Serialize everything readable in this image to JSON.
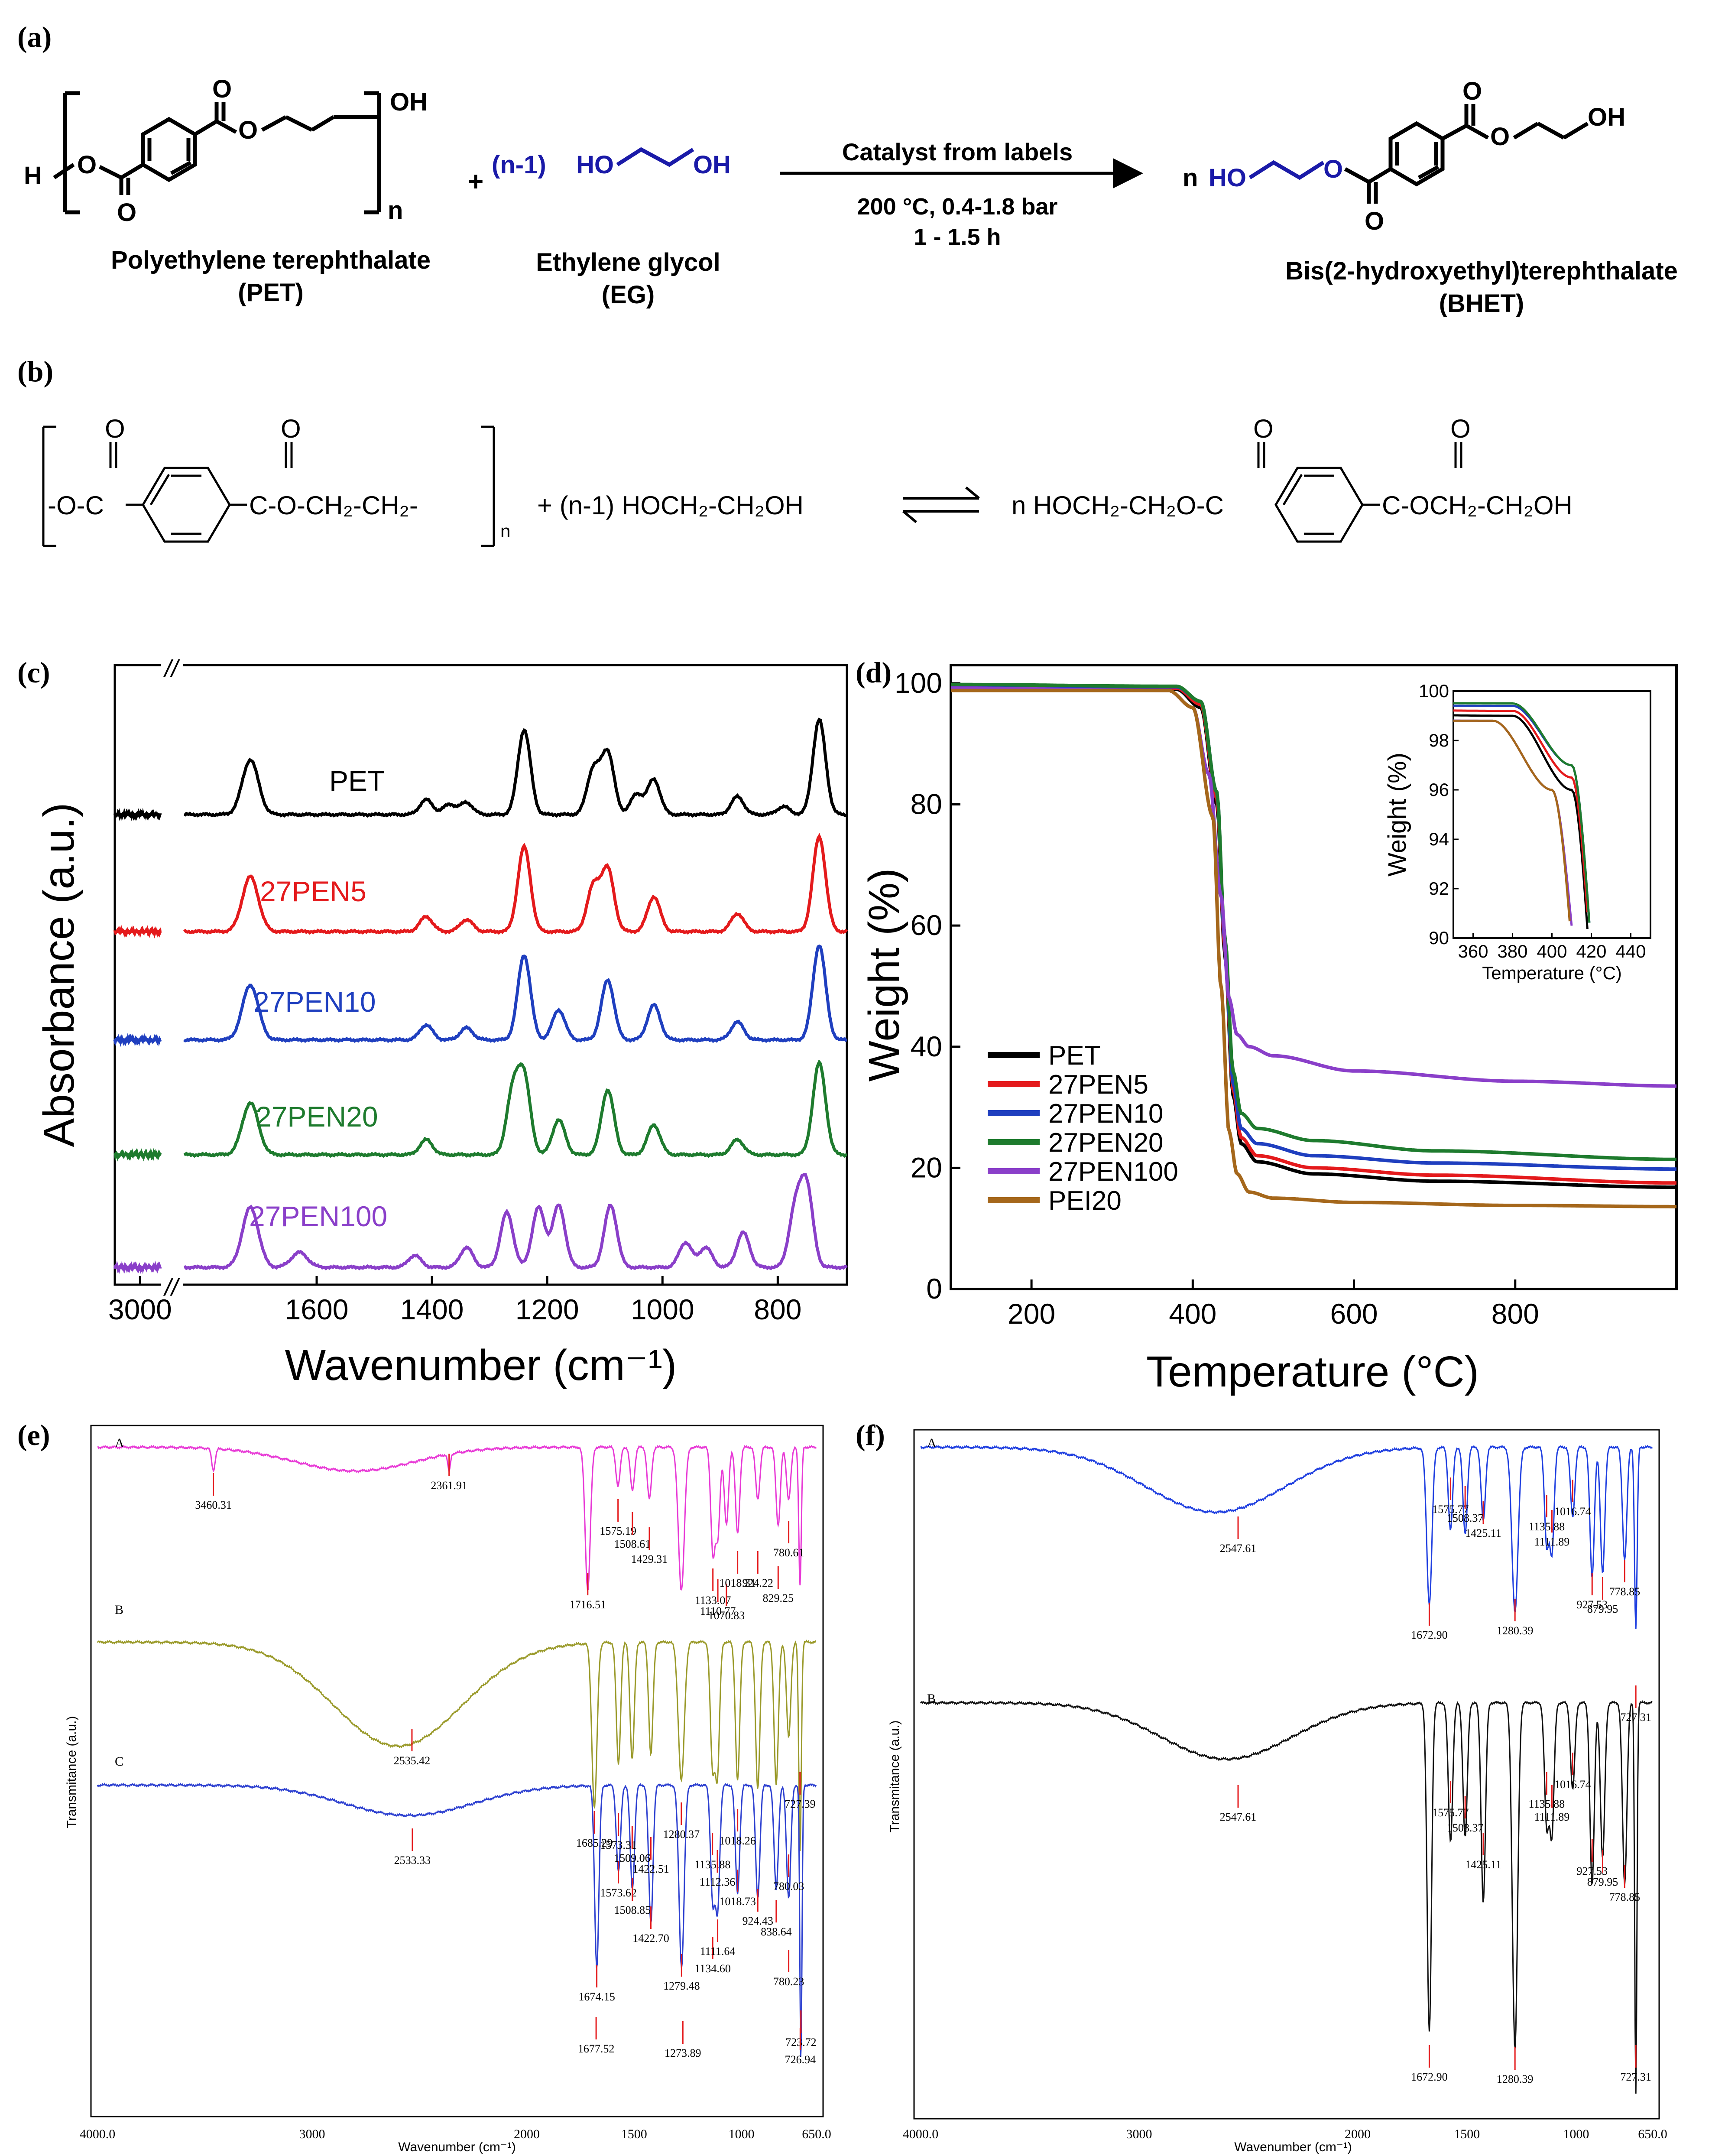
{
  "panels": {
    "a": {
      "label": "(a)",
      "pet_name": "Polyethylene terephthalate",
      "pet_abbr": "(PET)",
      "eg_name": "Ethylene glycol",
      "eg_abbr": "(EG)",
      "bhet_name": "Bis(2-hydroxyethyl)terephthalate",
      "bhet_abbr": "(BHET)",
      "catalyst": "Catalyst from labels",
      "conditions": "200 °C, 0.4-1.8 bar",
      "time": "1 - 1.5 h",
      "plus": "+",
      "eg_coef": "(n-1)",
      "bhet_coef": "n",
      "sub_n": "n",
      "oh": "OH",
      "ho": "HO",
      "h": "H",
      "o": "O"
    },
    "b": {
      "label": "(b)",
      "left_group": "-O-C",
      "mid_group": "C-O-CH₂-CH₂-",
      "sub_n": "n",
      "reagent": "+ (n-1) HOCH₂-CH₂OH",
      "product_left": "n HOCH₂-CH₂O-C",
      "product_right": "C-OCH₂-CH₂OH",
      "o": "O"
    },
    "c": {
      "label": "(c)",
      "break_mark": "//",
      "series_labels": [
        "PET",
        "27PEN5",
        "27PEN10",
        "27PEN20",
        "27PEN100"
      ]
    },
    "d": {
      "label": "(d)"
    },
    "e": {
      "label": "(e)",
      "trace_labels": [
        "A",
        "B",
        "C"
      ],
      "ylabel": "Transmitance (a.u.)",
      "xlabel": "Wavenumber (cm⁻¹)",
      "xticks": [
        "4000.0",
        "3000",
        "2000",
        "1500",
        "1000",
        "650.0"
      ],
      "peaks_a": [
        "3460.31",
        "2361.91",
        "1716.51",
        "1575.19",
        "1508.61",
        "1429.31",
        "1133.07",
        "1110.77",
        "1070.83",
        "1018.31",
        "924.22",
        "829.25",
        "780.61"
      ],
      "peaks_b": [
        "2535.42",
        "1685.29",
        "1280.37",
        "727.39",
        "1573.31",
        "1509.06",
        "1422.51",
        "1018.26",
        "1135.88",
        "1112.36",
        "1018.73",
        "924.43",
        "838.64",
        "780.03"
      ],
      "peaks_c": [
        "2533.33",
        "1573.62",
        "1508.85",
        "1422.70",
        "1674.15",
        "1677.52",
        "1279.48",
        "1273.89",
        "1134.60",
        "1111.64",
        "780.23",
        "723.72",
        "726.94"
      ]
    },
    "f": {
      "label": "(f)",
      "trace_labels": [
        "A",
        "B"
      ],
      "ylabel": "Transmitance (a.u.)",
      "xlabel": "Wavenumber (cm⁻¹)",
      "xticks": [
        "4000.0",
        "3000",
        "2000",
        "1500",
        "1000",
        "650.0"
      ],
      "peaks_a": [
        "2547.61",
        "1575.77",
        "1508.37",
        "1425.11",
        "1672.90",
        "1280.39",
        "1135.88",
        "1111.89",
        "1016.74",
        "927.53",
        "879.95",
        "778.85",
        "727.31"
      ],
      "peaks_b": [
        "2547.61",
        "1575.77",
        "1508.37",
        "1425.11",
        "1672.90",
        "1280.39",
        "1135.88",
        "1111.89",
        "1016.74",
        "927.53",
        "879.95",
        "778.85",
        "727.31"
      ]
    }
  },
  "chart_data": [
    {
      "id": "c",
      "type": "line",
      "title": "",
      "xlabel": "Wavenumber (cm⁻¹)",
      "ylabel": "Absorbance (a.u.)",
      "xticks": [
        "3000",
        "1600",
        "1400",
        "1200",
        "1000",
        "800"
      ],
      "grid": false,
      "series": [
        {
          "name": "PET",
          "color": "#000000",
          "peaks": [
            [
              1715,
              0.55
            ],
            [
              1410,
              0.15
            ],
            [
              1370,
              0.1
            ],
            [
              1340,
              0.12
            ],
            [
              1240,
              0.85
            ],
            [
              1120,
              0.45
            ],
            [
              1095,
              0.62
            ],
            [
              1045,
              0.2
            ],
            [
              1015,
              0.35
            ],
            [
              870,
              0.18
            ],
            [
              790,
              0.08
            ],
            [
              728,
              0.95
            ]
          ]
        },
        {
          "name": "27PEN5",
          "color": "#e41a1c",
          "peaks": [
            [
              1715,
              0.55
            ],
            [
              1410,
              0.15
            ],
            [
              1340,
              0.12
            ],
            [
              1240,
              0.85
            ],
            [
              1120,
              0.45
            ],
            [
              1095,
              0.62
            ],
            [
              1015,
              0.35
            ],
            [
              870,
              0.18
            ],
            [
              728,
              0.95
            ]
          ]
        },
        {
          "name": "27PEN10",
          "color": "#1f3fbf",
          "peaks": [
            [
              1715,
              0.55
            ],
            [
              1410,
              0.15
            ],
            [
              1340,
              0.12
            ],
            [
              1240,
              0.85
            ],
            [
              1180,
              0.3
            ],
            [
              1095,
              0.6
            ],
            [
              1015,
              0.35
            ],
            [
              870,
              0.18
            ],
            [
              728,
              0.95
            ]
          ]
        },
        {
          "name": "27PEN20",
          "color": "#1e7b2e",
          "peaks": [
            [
              1715,
              0.52
            ],
            [
              1410,
              0.15
            ],
            [
              1260,
              0.6
            ],
            [
              1240,
              0.75
            ],
            [
              1180,
              0.35
            ],
            [
              1095,
              0.65
            ],
            [
              1015,
              0.3
            ],
            [
              870,
              0.15
            ],
            [
              728,
              0.92
            ]
          ]
        },
        {
          "name": "27PEN100",
          "color": "#8a3fc9",
          "peaks": [
            [
              1715,
              0.6
            ],
            [
              1630,
              0.15
            ],
            [
              1430,
              0.12
            ],
            [
              1340,
              0.2
            ],
            [
              1270,
              0.55
            ],
            [
              1215,
              0.6
            ],
            [
              1180,
              0.62
            ],
            [
              1090,
              0.62
            ],
            [
              960,
              0.25
            ],
            [
              925,
              0.2
            ],
            [
              860,
              0.35
            ],
            [
              770,
              0.55
            ],
            [
              750,
              0.8
            ]
          ]
        }
      ]
    },
    {
      "id": "d",
      "type": "line",
      "title": "",
      "xlabel": "Temperature (°C)",
      "ylabel": "Weight (%)",
      "xlim": [
        100,
        1000
      ],
      "ylim": [
        0,
        103
      ],
      "xticks": [
        200,
        400,
        600,
        800
      ],
      "yticks": [
        0,
        20,
        40,
        60,
        80,
        100
      ],
      "legend": "bottom-left",
      "series": [
        {
          "name": "PET",
          "color": "#000000",
          "x": [
            100,
            380,
            410,
            430,
            440,
            450,
            460,
            480,
            550,
            700,
            1000
          ],
          "y": [
            99.6,
            99.0,
            96,
            80,
            55,
            32,
            24,
            21,
            19,
            17.8,
            16.8
          ]
        },
        {
          "name": "27PEN5",
          "color": "#e41a1c",
          "x": [
            100,
            380,
            410,
            430,
            440,
            450,
            460,
            480,
            550,
            700,
            1000
          ],
          "y": [
            99.6,
            99.2,
            96.5,
            81,
            56,
            33,
            25,
            22,
            20,
            18.8,
            17.5
          ]
        },
        {
          "name": "27PEN10",
          "color": "#1f3fbf",
          "x": [
            100,
            380,
            410,
            430,
            440,
            450,
            460,
            480,
            550,
            700,
            1000
          ],
          "y": [
            99.6,
            99.4,
            97,
            82,
            57,
            34,
            26.5,
            24,
            22,
            20.8,
            19.8
          ]
        },
        {
          "name": "27PEN20",
          "color": "#1e7b2e",
          "x": [
            100,
            380,
            410,
            430,
            440,
            450,
            460,
            480,
            550,
            700,
            1000
          ],
          "y": [
            99.8,
            99.5,
            97,
            82,
            58,
            36,
            29,
            26.5,
            24.5,
            22.8,
            21.4
          ]
        },
        {
          "name": "27PEN100",
          "color": "#8a3fc9",
          "x": [
            100,
            370,
            400,
            420,
            435,
            445,
            455,
            470,
            500,
            600,
            800,
            1000
          ],
          "y": [
            99.2,
            98.8,
            96,
            85,
            65,
            48,
            42,
            40,
            38.5,
            36,
            34.3,
            33.5
          ]
        },
        {
          "name": "PEI20",
          "color": "#a5671b",
          "x": [
            100,
            370,
            400,
            425,
            435,
            445,
            455,
            470,
            500,
            600,
            800,
            1000
          ],
          "y": [
            98.8,
            98.8,
            96,
            78,
            50,
            26,
            19,
            16,
            15,
            14.3,
            13.8,
            13.6
          ]
        }
      ],
      "inset": {
        "xlabel": "Temperature (°C)",
        "ylabel": "Weight (%)",
        "xlim": [
          350,
          450
        ],
        "ylim": [
          90,
          100
        ],
        "xticks": [
          360,
          380,
          400,
          420,
          440
        ],
        "yticks": [
          90,
          92,
          94,
          96,
          98,
          100
        ]
      }
    }
  ]
}
